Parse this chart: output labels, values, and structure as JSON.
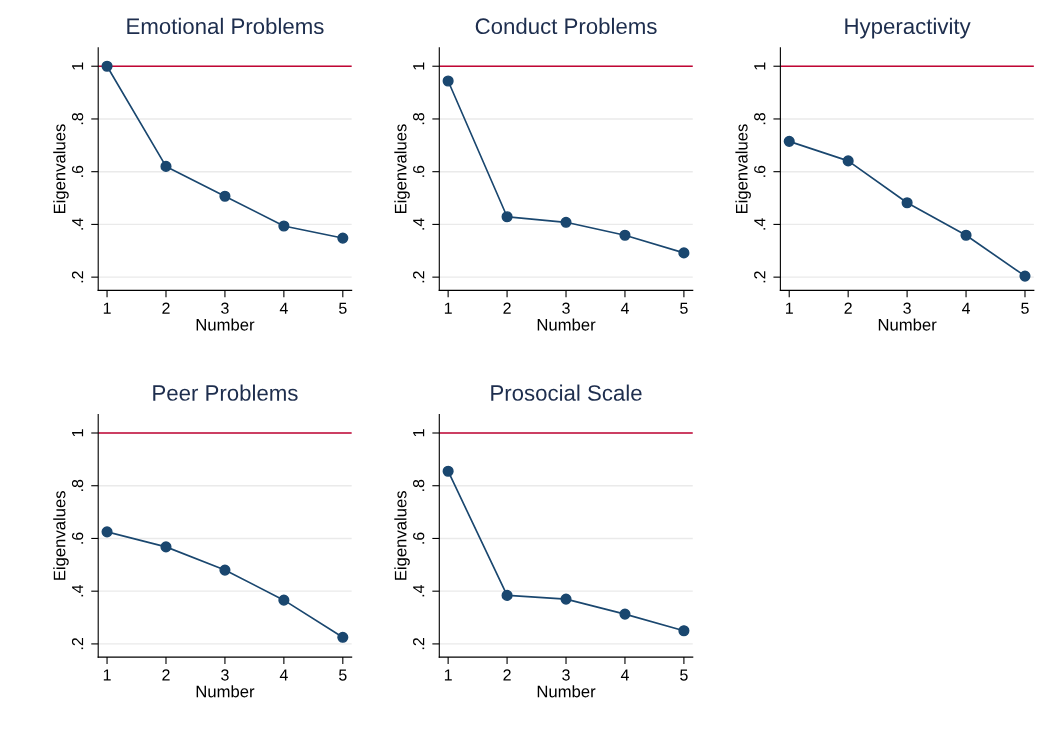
{
  "chart_data": [
    {
      "type": "line",
      "title": "Emotional Problems",
      "xlabel": "Number",
      "ylabel": "Eigenvalues",
      "x": [
        1,
        2,
        3,
        4,
        5
      ],
      "series": [
        {
          "color": "#1a476f",
          "values": [
            1.0,
            0.62,
            0.507,
            0.394,
            0.348
          ]
        }
      ],
      "xlim": [
        0.85,
        5.15
      ],
      "xticks": [
        1,
        2,
        3,
        4,
        5
      ],
      "ylim": [
        0.15,
        1.07
      ],
      "yticks": [
        {
          "value": 0.2,
          "label": ".2"
        },
        {
          "value": 0.4,
          "label": ".4"
        },
        {
          "value": 0.6,
          "label": ".6"
        },
        {
          "value": 0.8,
          "label": ".8"
        },
        1
      ],
      "ref_lines": [
        {
          "axis": "y",
          "value": 1,
          "color": "#c10534"
        }
      ],
      "grid": "y",
      "marker": "circle",
      "line_style": "solid"
    },
    {
      "type": "line",
      "title": "Conduct Problems",
      "xlabel": "Number",
      "ylabel": "Eigenvalues",
      "x": [
        1,
        2,
        3,
        4,
        5
      ],
      "series": [
        {
          "color": "#1a476f",
          "values": [
            0.944,
            0.429,
            0.408,
            0.359,
            0.292
          ]
        }
      ],
      "xlim": [
        0.85,
        5.15
      ],
      "xticks": [
        1,
        2,
        3,
        4,
        5
      ],
      "ylim": [
        0.15,
        1.07
      ],
      "yticks": [
        {
          "value": 0.2,
          "label": ".2"
        },
        {
          "value": 0.4,
          "label": ".4"
        },
        {
          "value": 0.6,
          "label": ".6"
        },
        {
          "value": 0.8,
          "label": ".8"
        },
        1
      ],
      "ref_lines": [
        {
          "axis": "y",
          "value": 1,
          "color": "#c10534"
        }
      ],
      "grid": "y",
      "marker": "circle",
      "line_style": "solid"
    },
    {
      "type": "line",
      "title": "Hyperactivity",
      "xlabel": "Number",
      "ylabel": "Eigenvalues",
      "x": [
        1,
        2,
        3,
        4,
        5
      ],
      "series": [
        {
          "color": "#1a476f",
          "values": [
            0.715,
            0.641,
            0.482,
            0.359,
            0.204
          ]
        }
      ],
      "xlim": [
        0.85,
        5.15
      ],
      "xticks": [
        1,
        2,
        3,
        4,
        5
      ],
      "ylim": [
        0.15,
        1.07
      ],
      "yticks": [
        {
          "value": 0.2,
          "label": ".2"
        },
        {
          "value": 0.4,
          "label": ".4"
        },
        {
          "value": 0.6,
          "label": ".6"
        },
        {
          "value": 0.8,
          "label": ".8"
        },
        1
      ],
      "ref_lines": [
        {
          "axis": "y",
          "value": 1,
          "color": "#c10534"
        }
      ],
      "grid": "y",
      "marker": "circle",
      "line_style": "solid"
    },
    {
      "type": "line",
      "title": "Peer Problems",
      "xlabel": "Number",
      "ylabel": "Eigenvalues",
      "x": [
        1,
        2,
        3,
        4,
        5
      ],
      "series": [
        {
          "color": "#1a476f",
          "values": [
            0.625,
            0.568,
            0.48,
            0.366,
            0.225
          ]
        }
      ],
      "xlim": [
        0.85,
        5.15
      ],
      "xticks": [
        1,
        2,
        3,
        4,
        5
      ],
      "ylim": [
        0.15,
        1.07
      ],
      "yticks": [
        {
          "value": 0.2,
          "label": ".2"
        },
        {
          "value": 0.4,
          "label": ".4"
        },
        {
          "value": 0.6,
          "label": ".6"
        },
        {
          "value": 0.8,
          "label": ".8"
        },
        1
      ],
      "ref_lines": [
        {
          "axis": "y",
          "value": 1,
          "color": "#c10534"
        }
      ],
      "grid": "y",
      "marker": "circle",
      "line_style": "solid"
    },
    {
      "type": "line",
      "title": "Prosocial Scale",
      "xlabel": "Number",
      "ylabel": "Eigenvalues",
      "x": [
        1,
        2,
        3,
        4,
        5
      ],
      "series": [
        {
          "color": "#1a476f",
          "values": [
            0.855,
            0.384,
            0.37,
            0.313,
            0.25
          ]
        }
      ],
      "xlim": [
        0.85,
        5.15
      ],
      "xticks": [
        1,
        2,
        3,
        4,
        5
      ],
      "ylim": [
        0.15,
        1.07
      ],
      "yticks": [
        {
          "value": 0.2,
          "label": ".2"
        },
        {
          "value": 0.4,
          "label": ".4"
        },
        {
          "value": 0.6,
          "label": ".6"
        },
        {
          "value": 0.8,
          "label": ".8"
        },
        1
      ],
      "ref_lines": [
        {
          "axis": "y",
          "value": 1,
          "color": "#c10534"
        }
      ],
      "grid": "y",
      "marker": "circle",
      "line_style": "solid"
    }
  ]
}
